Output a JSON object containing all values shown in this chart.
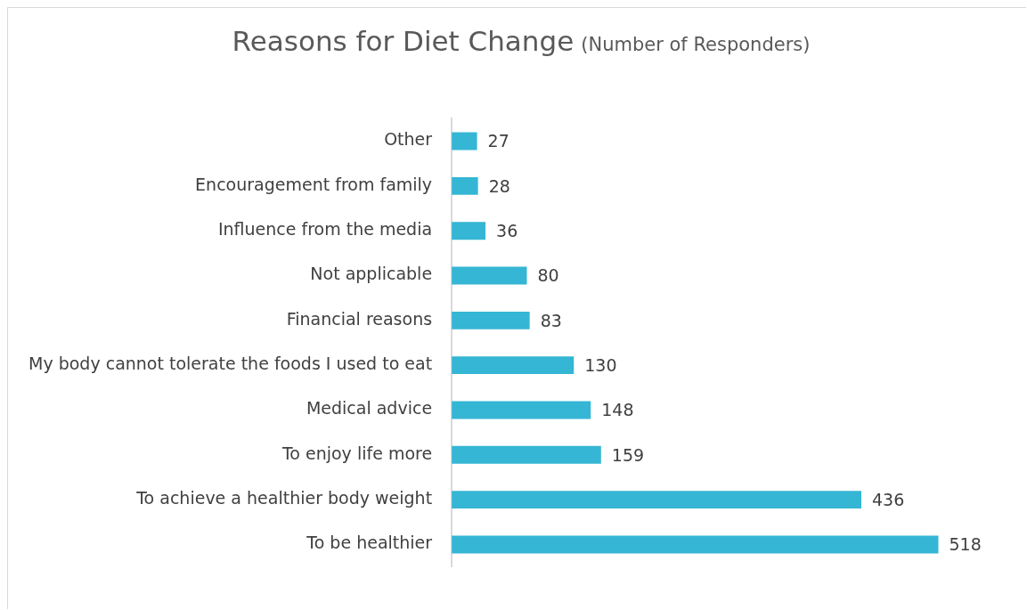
{
  "chart_data": {
    "type": "bar",
    "orientation": "horizontal",
    "title": "Reasons for Diet Change",
    "subtitle": "(Number of Responders)",
    "categories": [
      "Other",
      "Encouragement from family",
      "Influence from the media",
      "Not applicable",
      "Financial reasons",
      "My body cannot tolerate the foods I used to eat",
      "Medical advice",
      "To enjoy life more",
      "To achieve a healthier body weight",
      "To be healthier"
    ],
    "values": [
      27,
      28,
      36,
      80,
      83,
      130,
      148,
      159,
      436,
      518
    ],
    "color": "#35b6d4",
    "data_labels": true,
    "legend": false
  }
}
